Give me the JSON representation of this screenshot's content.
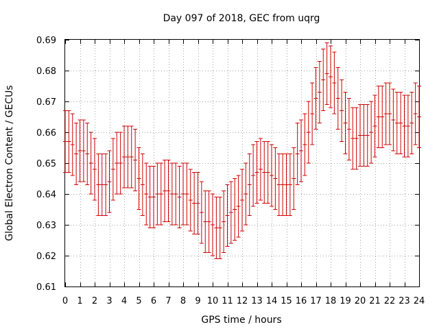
{
  "chart_data": {
    "type": "scatter",
    "title": "Day 097 of 2018, GEC from uqrg",
    "xlabel": "GPS time / hours",
    "ylabel": "Global Electron Content / GECUs",
    "xlim": [
      0,
      24
    ],
    "ylim": [
      0.61,
      0.69
    ],
    "x_ticks": [
      "0",
      "1",
      "2",
      "3",
      "4",
      "5",
      "6",
      "7",
      "8",
      "9",
      "10",
      "11",
      "12",
      "13",
      "14",
      "15",
      "16",
      "17",
      "18",
      "19",
      "20",
      "21",
      "22",
      "23",
      "24"
    ],
    "y_ticks": [
      "0.61",
      "0.62",
      "0.63",
      "0.64",
      "0.65",
      "0.66",
      "0.67",
      "0.68",
      "0.69"
    ],
    "grid": true,
    "error_bar": 0.01,
    "color": "#cc0000",
    "series": [
      {
        "x": [
          0.0,
          0.25,
          0.5,
          0.75,
          1.0,
          1.25,
          1.5,
          1.75,
          2.0,
          2.25,
          2.5,
          2.75,
          3.0,
          3.25,
          3.5,
          3.75,
          4.0,
          4.25,
          4.5,
          4.75,
          5.0,
          5.25,
          5.5,
          5.75,
          6.0,
          6.25,
          6.5,
          6.75,
          7.0,
          7.25,
          7.5,
          7.75,
          8.0,
          8.25,
          8.5,
          8.75,
          9.0,
          9.25,
          9.5,
          9.75,
          10.0,
          10.25,
          10.5,
          10.75,
          11.0,
          11.25,
          11.5,
          11.75,
          12.0,
          12.25,
          12.5,
          12.75,
          13.0,
          13.25,
          13.5,
          13.75,
          14.0,
          14.25,
          14.5,
          14.75,
          15.0,
          15.25,
          15.5,
          15.75,
          16.0,
          16.25,
          16.5,
          16.75,
          17.0,
          17.25,
          17.5,
          17.75,
          18.0,
          18.25,
          18.5,
          18.75,
          19.0,
          19.25,
          19.5,
          19.75,
          20.0,
          20.25,
          20.5,
          20.75,
          21.0,
          21.25,
          21.5,
          21.75,
          22.0,
          22.25,
          22.5,
          22.75,
          23.0,
          23.25,
          23.5,
          23.75,
          24.0
        ],
        "y": [
          0.657,
          0.657,
          0.656,
          0.653,
          0.654,
          0.654,
          0.653,
          0.65,
          0.648,
          0.643,
          0.643,
          0.643,
          0.644,
          0.648,
          0.65,
          0.65,
          0.652,
          0.652,
          0.652,
          0.651,
          0.645,
          0.643,
          0.64,
          0.639,
          0.639,
          0.64,
          0.64,
          0.641,
          0.641,
          0.64,
          0.64,
          0.639,
          0.64,
          0.64,
          0.638,
          0.637,
          0.637,
          0.634,
          0.631,
          0.631,
          0.63,
          0.629,
          0.629,
          0.631,
          0.633,
          0.634,
          0.635,
          0.636,
          0.638,
          0.64,
          0.643,
          0.646,
          0.647,
          0.648,
          0.647,
          0.647,
          0.646,
          0.645,
          0.643,
          0.643,
          0.643,
          0.643,
          0.645,
          0.653,
          0.654,
          0.656,
          0.66,
          0.666,
          0.671,
          0.673,
          0.677,
          0.679,
          0.678,
          0.676,
          0.671,
          0.667,
          0.663,
          0.661,
          0.658,
          0.658,
          0.659,
          0.659,
          0.659,
          0.66,
          0.662,
          0.665,
          0.665,
          0.666,
          0.666,
          0.664,
          0.663,
          0.663,
          0.662,
          0.662,
          0.663,
          0.666,
          0.665
        ]
      }
    ]
  }
}
